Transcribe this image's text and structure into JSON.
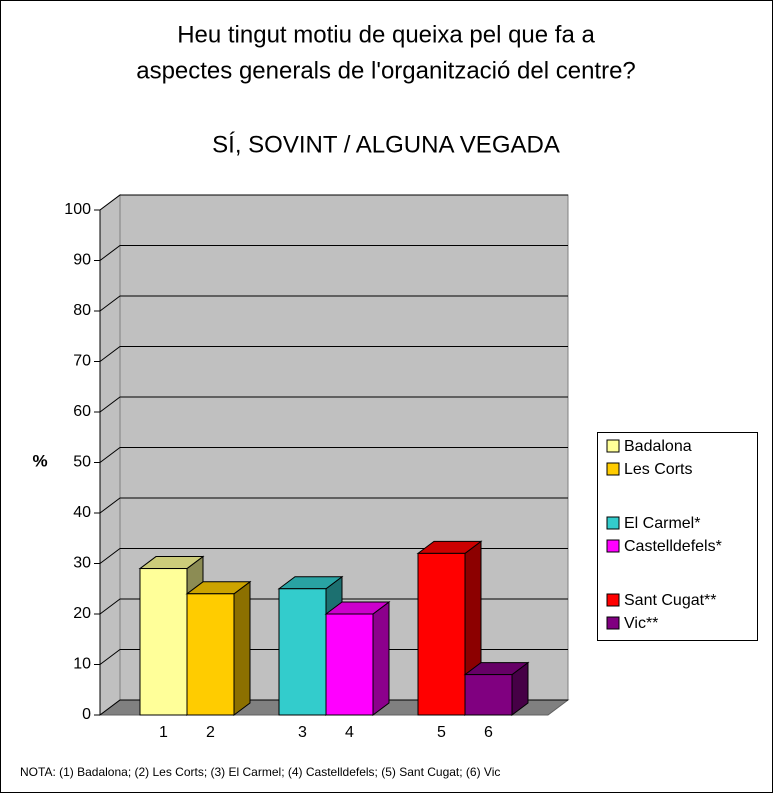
{
  "chart_data": {
    "type": "bar3d",
    "title": [
      "Heu tingut motiu de queixa pel que fa a",
      "aspectes generals de l'organització del centre?"
    ],
    "subtitle": "SÍ, SOVINT / ALGUNA VEGADA",
    "y_label": "%",
    "categories": [
      "1",
      "2",
      "3",
      "4",
      "5",
      "6"
    ],
    "values": [
      29,
      24,
      25,
      20,
      32,
      8
    ],
    "colors": [
      "#ffff99",
      "#ffcc00",
      "#33cccc",
      "#ff00ff",
      "#ff0000",
      "#800080"
    ],
    "legend": [
      "Badalona",
      "Les Corts",
      "El Carmel*",
      "Castelldefels*",
      "Sant Cugat**",
      "Vic**"
    ],
    "ylim": [
      0,
      100
    ],
    "yticks": [
      0,
      10,
      20,
      30,
      40,
      50,
      60,
      70,
      80,
      90,
      100
    ],
    "grid": true,
    "note": "NOTA: (1) Badalona; (2) Les Corts; (3) El Carmel; (4) Castelldefels; (5) Sant Cugat; (6) Vic"
  }
}
